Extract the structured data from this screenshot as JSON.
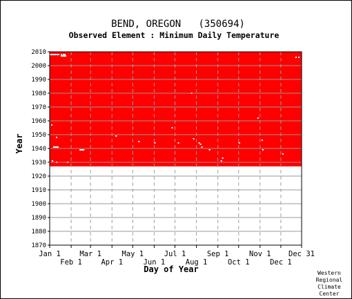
{
  "chart_data": {
    "type": "heatmap",
    "title": "BEND, OREGON   (350694)",
    "subtitle": "Observed Element : Minimum Daily Temperature",
    "xlabel": "Day of Year",
    "ylabel": "Year",
    "xlim": [
      1,
      365
    ],
    "ylim": [
      1870,
      2010
    ],
    "grid": true,
    "y_ticks": [
      1870,
      1880,
      1890,
      1900,
      1910,
      1920,
      1930,
      1940,
      1950,
      1960,
      1970,
      1980,
      1990,
      2000,
      2010
    ],
    "x_ticks_top_row": [
      {
        "label": "Jan 1",
        "day": 1
      },
      {
        "label": "Mar 1",
        "day": 60
      },
      {
        "label": "May 1",
        "day": 121
      },
      {
        "label": "Jul 1",
        "day": 182
      },
      {
        "label": "Sep 1",
        "day": 244
      },
      {
        "label": "Nov 1",
        "day": 305
      },
      {
        "label": "Dec 31",
        "day": 365
      }
    ],
    "x_ticks_bottom_row": [
      {
        "label": "Feb 1",
        "day": 32
      },
      {
        "label": "Apr 1",
        "day": 91
      },
      {
        "label": "Jun 1",
        "day": 152
      },
      {
        "label": "Aug 1",
        "day": 213
      },
      {
        "label": "Oct 1",
        "day": 274
      },
      {
        "label": "Dec 1",
        "day": 335
      }
    ],
    "data_period": {
      "start_year": 1927,
      "end_year": 2010
    },
    "data_color": "#ff0000",
    "missing_color": "#ffffff",
    "missing_days": [
      {
        "day": 1,
        "year": 2008
      },
      {
        "day": 3,
        "year": 2008
      },
      {
        "day": 5,
        "year": 2008
      },
      {
        "day": 7,
        "year": 2008
      },
      {
        "day": 9,
        "year": 2008
      },
      {
        "day": 11,
        "year": 2008
      },
      {
        "day": 13,
        "year": 2008
      },
      {
        "day": 17,
        "year": 2008
      },
      {
        "day": 20,
        "year": 2008
      },
      {
        "day": 21,
        "year": 2008
      },
      {
        "day": 22,
        "year": 2008
      },
      {
        "day": 17,
        "year": 2007
      },
      {
        "day": 18,
        "year": 2007
      },
      {
        "day": 19,
        "year": 2007
      },
      {
        "day": 20,
        "year": 2007
      },
      {
        "day": 21,
        "year": 2007
      },
      {
        "day": 22,
        "year": 2007
      },
      {
        "day": 23,
        "year": 2007
      },
      {
        "day": 3,
        "year": 1957
      },
      {
        "day": 10,
        "year": 1948
      },
      {
        "day": 6,
        "year": 1941
      },
      {
        "day": 7,
        "year": 1941
      },
      {
        "day": 8,
        "year": 1941
      },
      {
        "day": 9,
        "year": 1941
      },
      {
        "day": 10,
        "year": 1941
      },
      {
        "day": 11,
        "year": 1941
      },
      {
        "day": 12,
        "year": 1941
      },
      {
        "day": 44,
        "year": 1939
      },
      {
        "day": 45,
        "year": 1939
      },
      {
        "day": 46,
        "year": 1939
      },
      {
        "day": 47,
        "year": 1939
      },
      {
        "day": 48,
        "year": 1939
      },
      {
        "day": 49,
        "year": 1939
      },
      {
        "day": 4,
        "year": 1931
      },
      {
        "day": 10,
        "year": 1930
      },
      {
        "day": 26,
        "year": 1930
      },
      {
        "day": 96,
        "year": 1949
      },
      {
        "day": 129,
        "year": 1945
      },
      {
        "day": 152,
        "year": 1944
      },
      {
        "day": 177,
        "year": 1955
      },
      {
        "day": 186,
        "year": 1944
      },
      {
        "day": 205,
        "year": 1980
      },
      {
        "day": 208,
        "year": 1947
      },
      {
        "day": 216,
        "year": 1944
      },
      {
        "day": 218,
        "year": 1943
      },
      {
        "day": 220,
        "year": 1941
      },
      {
        "day": 231,
        "year": 1939
      },
      {
        "day": 248,
        "year": 1931
      },
      {
        "day": 274,
        "year": 1944
      },
      {
        "day": 301,
        "year": 1962
      },
      {
        "day": 307,
        "year": 1946
      },
      {
        "day": 308,
        "year": 1939
      },
      {
        "day": 337,
        "year": 1936
      },
      {
        "day": 356,
        "year": 2006
      },
      {
        "day": 360,
        "year": 2006
      },
      {
        "day": 250,
        "year": 1933
      }
    ]
  },
  "credit": [
    "Western",
    "Regional",
    "Climate",
    "Center"
  ]
}
